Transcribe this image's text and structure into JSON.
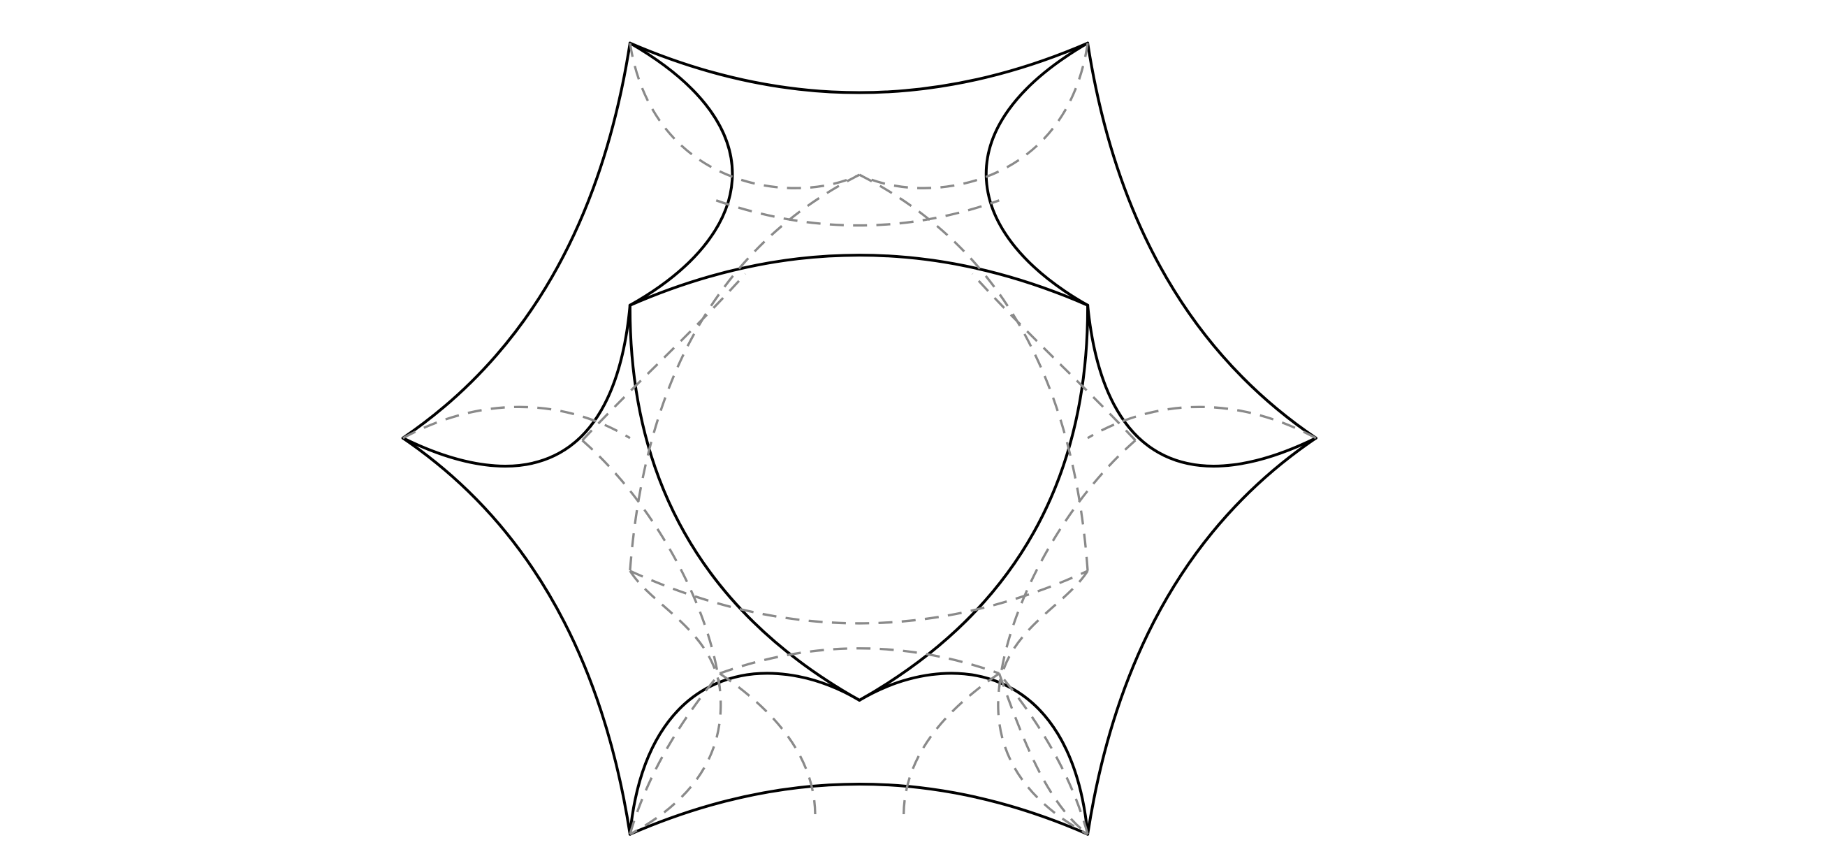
{
  "diagram": {
    "kind": "geometric-line-drawing",
    "stroke_colors": {
      "solid": "#000000",
      "dashed": "#8a8a8a"
    },
    "background": "#ffffff",
    "labels": []
  }
}
